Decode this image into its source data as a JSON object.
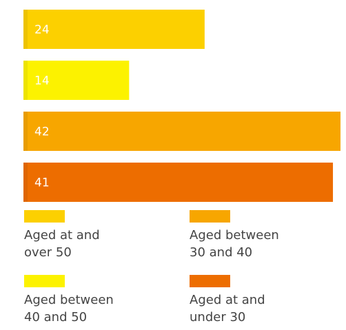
{
  "chart_data": {
    "type": "bar",
    "orientation": "horizontal",
    "categories": [
      "Aged at and over 50",
      "Aged between 40 and 50",
      "Aged between 30 and 40",
      "Aged at and under 30"
    ],
    "values": [
      24,
      14,
      42,
      41
    ],
    "colors": [
      "#fcd000",
      "#fcf200",
      "#f7a600",
      "#ed6d00"
    ],
    "xlim": [
      0,
      42
    ],
    "data_labels": true,
    "legend_position": "bottom"
  },
  "legend": [
    {
      "label": "Aged at and\nover 50",
      "color": "#fcd000"
    },
    {
      "label": "Aged between\n30 and 40",
      "color": "#f7a600"
    },
    {
      "label": "Aged between\n40 and 50",
      "color": "#fcf200"
    },
    {
      "label": "Aged at and\nunder 30",
      "color": "#ed6d00"
    }
  ]
}
